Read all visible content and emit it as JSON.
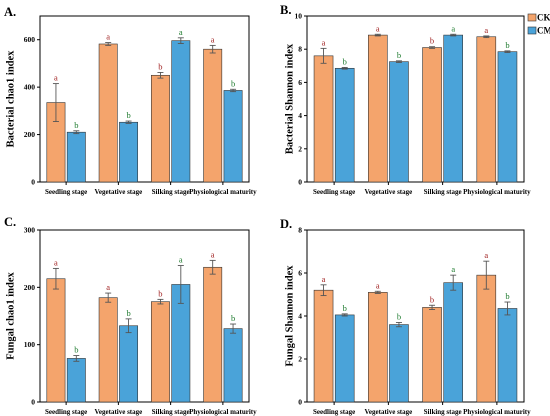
{
  "colors": {
    "CK": "#f4a46c",
    "CM": "#4aa3d9",
    "CK_letter": "#9e1b1b",
    "CM_letter": "#1c7a2c",
    "error_bar": "#555555",
    "axis": "#000000"
  },
  "chart_data": [
    {
      "type": "bar",
      "panel": "A.",
      "title": "",
      "ylabel": "Bacterial chao1 index",
      "xlabel": "",
      "ylim": [
        0,
        700
      ],
      "yticks": [
        0,
        200,
        400,
        600
      ],
      "categories": [
        "Seedling stage",
        "Vegetative stage",
        "Silking stage",
        "Physiological maturity"
      ],
      "series": [
        {
          "name": "CK",
          "values": [
            335,
            582,
            450,
            560
          ],
          "errors": [
            80,
            6,
            12,
            16
          ],
          "letters": [
            "a",
            "a",
            "b",
            "a"
          ]
        },
        {
          "name": "CM",
          "values": [
            210,
            252,
            596,
            386
          ],
          "errors": [
            6,
            5,
            12,
            5
          ],
          "letters": [
            "b",
            "b",
            "a",
            "b"
          ]
        }
      ]
    },
    {
      "type": "bar",
      "panel": "B.",
      "title": "",
      "ylabel": "Bacterial Shannon index",
      "xlabel": "",
      "ylim": [
        0,
        10
      ],
      "yticks": [
        0,
        2,
        4,
        6,
        8,
        10
      ],
      "categories": [
        "Seedling stage",
        "Vegetative stage",
        "Silking stage",
        "Physiological maturity"
      ],
      "series": [
        {
          "name": "CK",
          "values": [
            7.6,
            8.85,
            8.1,
            8.75
          ],
          "errors": [
            0.45,
            0.05,
            0.05,
            0.05
          ],
          "letters": [
            "a",
            "a",
            "b",
            "a"
          ]
        },
        {
          "name": "CM",
          "values": [
            6.85,
            7.25,
            8.85,
            7.85
          ],
          "errors": [
            0.05,
            0.05,
            0.05,
            0.05
          ],
          "letters": [
            "b",
            "b",
            "a",
            "b"
          ]
        }
      ]
    },
    {
      "type": "bar",
      "panel": "C.",
      "title": "",
      "ylabel": "Fungal chao1 index",
      "xlabel": "",
      "ylim": [
        0,
        300
      ],
      "yticks": [
        0,
        100,
        200,
        300
      ],
      "categories": [
        "Seedling stage",
        "Vegetative stage",
        "Silking stage",
        "Physiological maturity"
      ],
      "series": [
        {
          "name": "CK",
          "values": [
            215,
            182,
            175,
            235
          ],
          "errors": [
            18,
            8,
            4,
            12
          ],
          "letters": [
            "a",
            "a",
            "b",
            "a"
          ]
        },
        {
          "name": "CM",
          "values": [
            76,
            133,
            205,
            128
          ],
          "errors": [
            5,
            12,
            33,
            8
          ],
          "letters": [
            "b",
            "b",
            "a",
            "b"
          ]
        }
      ]
    },
    {
      "type": "bar",
      "panel": "D.",
      "title": "",
      "ylabel": "Fungal Shannon index",
      "xlabel": "",
      "ylim": [
        0,
        8
      ],
      "yticks": [
        0,
        2,
        4,
        6,
        8
      ],
      "categories": [
        "Seedling stage",
        "Vegetative stage",
        "Silking stage",
        "Physiological maturity"
      ],
      "series": [
        {
          "name": "CK",
          "values": [
            5.2,
            5.1,
            4.4,
            5.9
          ],
          "errors": [
            0.25,
            0.05,
            0.1,
            0.65
          ],
          "letters": [
            "a",
            "a",
            "b",
            "a"
          ]
        },
        {
          "name": "CM",
          "values": [
            4.05,
            3.6,
            5.55,
            4.35
          ],
          "errors": [
            0.05,
            0.1,
            0.35,
            0.3
          ],
          "letters": [
            "b",
            "b",
            "a",
            "b"
          ]
        }
      ]
    }
  ],
  "legend": {
    "position": "top-right",
    "items": [
      {
        "label": "CK"
      },
      {
        "label": "CM"
      }
    ]
  }
}
